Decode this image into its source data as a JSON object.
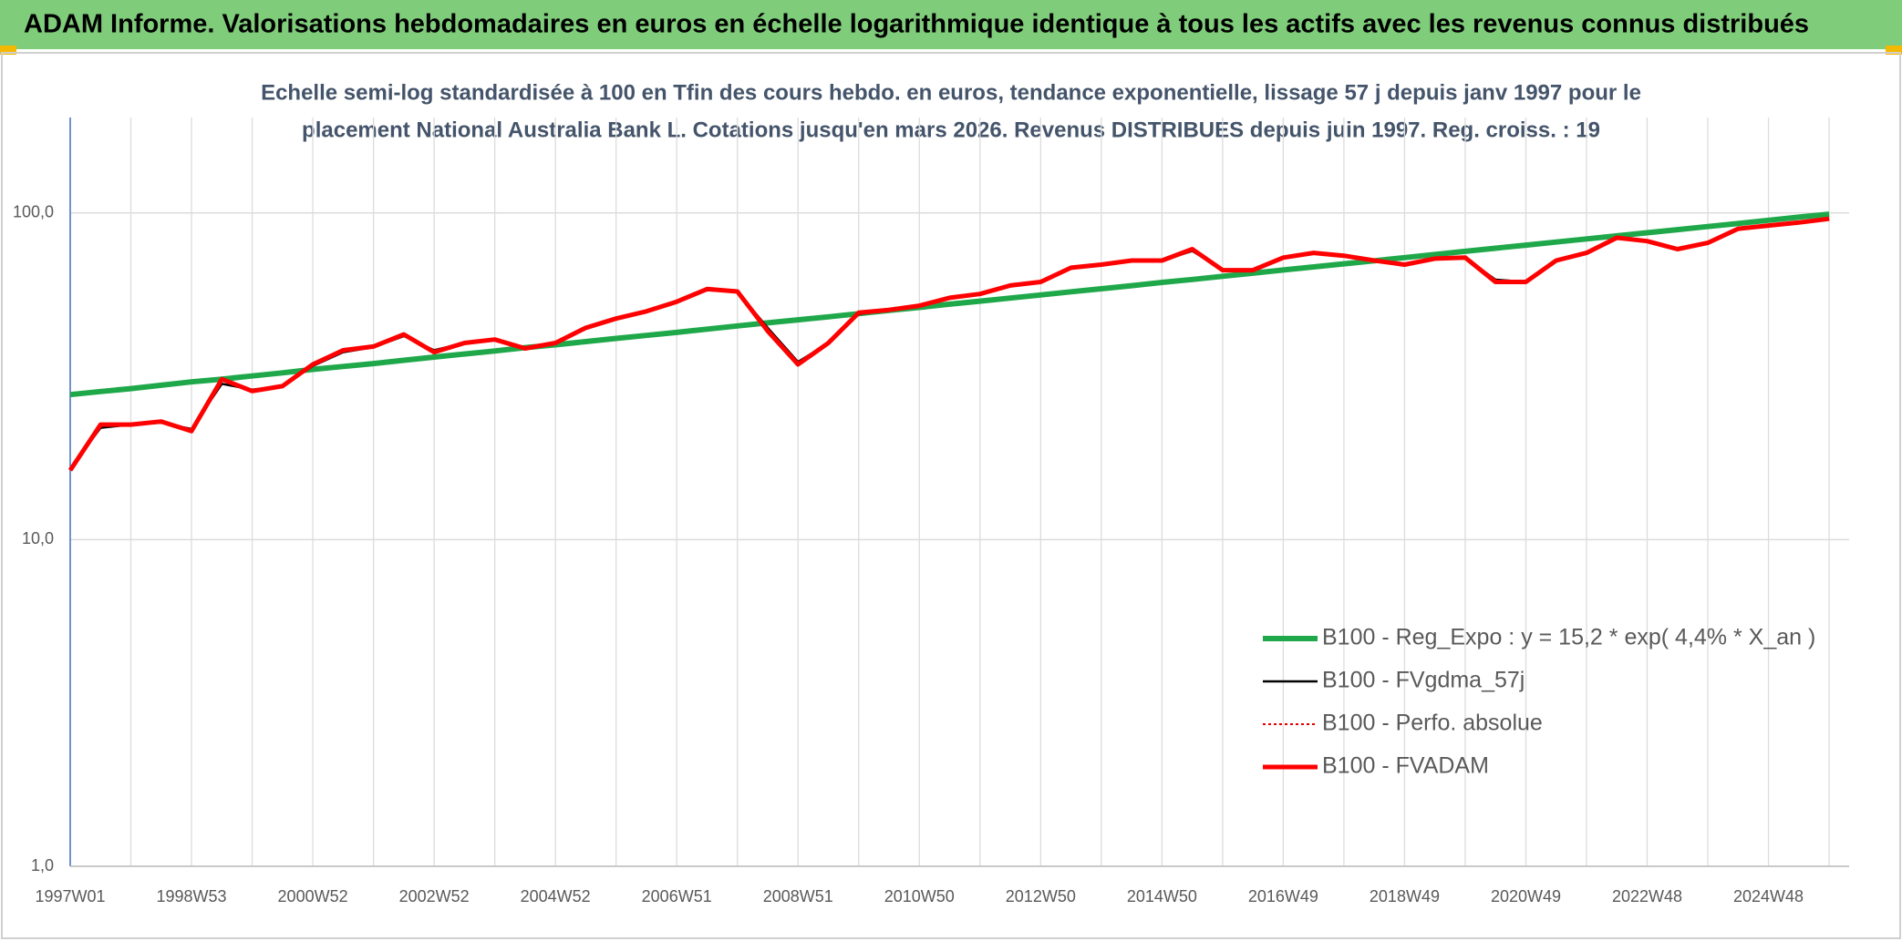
{
  "header": {
    "title": "ADAM Informe. Valorisations hebdomadaires en euros en échelle logarithmique identique à tous les actifs avec les revenus connus distribués"
  },
  "chart_data": {
    "type": "line",
    "subtitle": [
      "Echelle semi-log standardisée à 100 en Tfin des cours hebdo. en euros, tendance exponentielle, lissage 57 j depuis janv 1997 pour le",
      "placement National Australia Bank L. Cotations jusqu'en mars 2026. Revenus DISTRIBUES depuis juin 1997. Reg. croiss. : 19"
    ],
    "categories": [
      "1997W01",
      null,
      null,
      null,
      "1998W53",
      null,
      null,
      null,
      "2000W52",
      null,
      null,
      null,
      "2002W52",
      null,
      null,
      null,
      "2004W52",
      null,
      null,
      null,
      "2006W51",
      null,
      null,
      null,
      "2008W51",
      null,
      null,
      null,
      "2010W50",
      null,
      null,
      null,
      "2012W50",
      null,
      null,
      null,
      "2014W50",
      null,
      null,
      null,
      "2016W49",
      null,
      null,
      null,
      "2018W49",
      null,
      null,
      null,
      "2020W49",
      null,
      null,
      null,
      "2022W48",
      null,
      null,
      null,
      "2024W48",
      null,
      null
    ],
    "log_scale": true,
    "ylim": [
      1,
      196
    ],
    "yticks": [
      {
        "value": 1,
        "label": "1,0"
      },
      {
        "value": 10,
        "label": "10,0"
      },
      {
        "value": 100,
        "label": "100,0"
      }
    ],
    "grid": true,
    "legend": "lower right",
    "series": [
      {
        "name": "B100 - Reg_Expo : y = 15,2 * exp( 4,4% *  X_an )",
        "color": "#1fa84a",
        "linewidth": 6,
        "linestyle": "solid",
        "values": [
          27.8,
          28.4,
          29.0,
          29.7,
          30.4,
          31.0,
          31.7,
          32.4,
          33.2,
          33.9,
          34.6,
          35.4,
          36.2,
          37.0,
          37.8,
          38.7,
          39.5,
          40.4,
          41.3,
          42.2,
          43.1,
          44.1,
          45.1,
          46.1,
          47.1,
          48.1,
          49.2,
          50.3,
          51.4,
          52.6,
          53.7,
          54.9,
          56.1,
          57.4,
          58.6,
          59.9,
          61.3,
          62.6,
          64.0,
          65.4,
          66.9,
          68.4,
          69.9,
          71.4,
          73.0,
          74.6,
          76.3,
          78.0,
          79.7,
          81.5,
          83.3,
          85.1,
          87.0,
          88.9,
          90.9,
          92.9,
          95.0,
          97.1,
          99.2
        ]
      },
      {
        "name": "B100 - FVgdma_57j",
        "color": "#000000",
        "linewidth": 2.5,
        "linestyle": "solid",
        "values": [
          16.5,
          22,
          22.5,
          22.8,
          21.8,
          30,
          28.8,
          29.5,
          34,
          37.5,
          38.8,
          42,
          38,
          40,
          41,
          38.8,
          40,
          44.2,
          47.2,
          49.8,
          53.2,
          58,
          57.5,
          44.5,
          35,
          40,
          49,
          50.5,
          52,
          54.8,
          56.5,
          59.8,
          61.5,
          67.5,
          69.5,
          71.2,
          71.5,
          76.5,
          67.2,
          67,
          72.8,
          75.2,
          74,
          71.5,
          69.8,
          72.3,
          72.8,
          62.5,
          61.5,
          71,
          75.3,
          83.5,
          82,
          77.8,
          80.8,
          89,
          91.5,
          93.5,
          95.8
        ]
      },
      {
        "name": "B100 - Perfo. absolue",
        "color": "#e00000",
        "linewidth": 2,
        "linestyle": "dotted",
        "values": [
          16.3,
          22.5,
          22.5,
          23,
          21.5,
          31,
          28.5,
          29.5,
          34.4,
          38,
          39,
          42.5,
          37.5,
          40,
          41,
          38.5,
          40,
          44.5,
          47.5,
          50,
          53.5,
          58.5,
          57.5,
          43.5,
          34.4,
          40,
          49.5,
          50.5,
          52,
          55,
          56.5,
          60,
          61.5,
          68,
          69.5,
          71.5,
          71.5,
          77.5,
          66.8,
          66.8,
          73,
          75.5,
          74,
          71.5,
          69.5,
          72.5,
          73,
          61.5,
          61.5,
          71.5,
          75.5,
          84,
          82,
          77.5,
          81,
          89.5,
          91.5,
          93.5,
          96
        ]
      },
      {
        "name": "B100 - FVADAM",
        "color": "#ff0000",
        "linewidth": 5,
        "linestyle": "solid",
        "values": [
          16.3,
          22.5,
          22.5,
          23,
          21.5,
          31,
          28.5,
          29.5,
          34.4,
          38,
          39,
          42.5,
          37.5,
          40,
          41,
          38.5,
          40,
          44.5,
          47.5,
          50,
          53.5,
          58.5,
          57.5,
          43.5,
          34.4,
          40,
          49.5,
          50.5,
          52,
          55,
          56.5,
          60,
          61.5,
          68,
          69.5,
          71.5,
          71.5,
          77.5,
          66.8,
          66.8,
          73,
          75.5,
          74,
          71.5,
          69.5,
          72.5,
          73,
          61.5,
          61.5,
          71.5,
          75.5,
          84,
          82,
          77.5,
          81,
          89.5,
          91.5,
          93.5,
          96
        ]
      }
    ]
  }
}
